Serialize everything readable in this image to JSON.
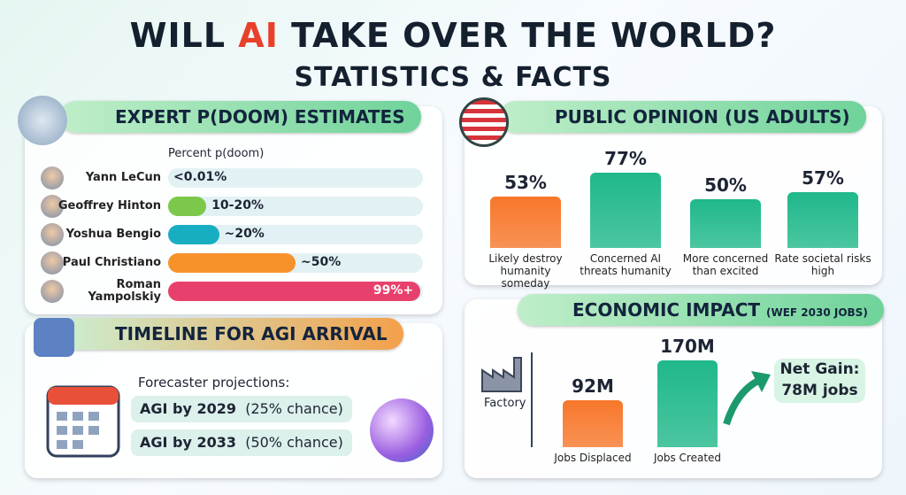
{
  "title": [
    "WILL",
    "AI",
    "TAKE OVER THE WORLD?"
  ],
  "subtitle": "STATISTICS & FACTS",
  "chart_data": [
    {
      "type": "hbar",
      "title": "EXPERT P(DOOM) ESTIMATES",
      "x_label": "Percent p(doom)",
      "categories": [
        "Yann LeCun",
        "Geoffrey Hinton",
        "Yoshua Bengio",
        "Paul Christiano",
        "Roman Yampolskiy"
      ],
      "values": [
        0.01,
        15,
        20,
        50,
        99
      ],
      "value_labels": [
        "<0.01%",
        "10-20%",
        "~20%",
        "~50%",
        "99%+"
      ],
      "colors": [
        "#bfe3ea",
        "#7cc84a",
        "#18aec2",
        "#f7922a",
        "#e8406c"
      ],
      "xlim": [
        0,
        100
      ]
    },
    {
      "type": "bar",
      "title": "PUBLIC OPINION (US ADULTS)",
      "categories": [
        "Likely destroy humanity someday",
        "Concerned AI threats humanity",
        "More concerned than excited",
        "Rate societal risks high"
      ],
      "values": [
        53,
        77,
        50,
        57
      ],
      "value_labels": [
        "53%",
        "77%",
        "50%",
        "57%"
      ],
      "colors": [
        "#f7772a",
        "#1fb88a",
        "#1fb88a",
        "#1fb88a"
      ],
      "ylim": [
        0,
        100
      ]
    },
    {
      "type": "bar",
      "title": "ECONOMIC IMPACT",
      "subtitle": "(WEF 2030 JOBS)",
      "categories": [
        "Jobs Displaced",
        "Jobs Created"
      ],
      "values": [
        92,
        170
      ],
      "value_labels": [
        "92M",
        "170M"
      ],
      "colors": [
        "#f7772a",
        "#1fb88a"
      ],
      "ylim": [
        0,
        180
      ],
      "side_label": "Factory",
      "annotation": [
        "Net Gain:",
        "78M jobs"
      ]
    }
  ],
  "timeline": {
    "title": "TIMELINE FOR AGI ARRIVAL",
    "subtitle": "Forecaster projections:",
    "items": [
      {
        "label": "AGI by 2029",
        "chance": "(25% chance)"
      },
      {
        "label": "AGI by 2033",
        "chance": "(50% chance)"
      }
    ]
  }
}
